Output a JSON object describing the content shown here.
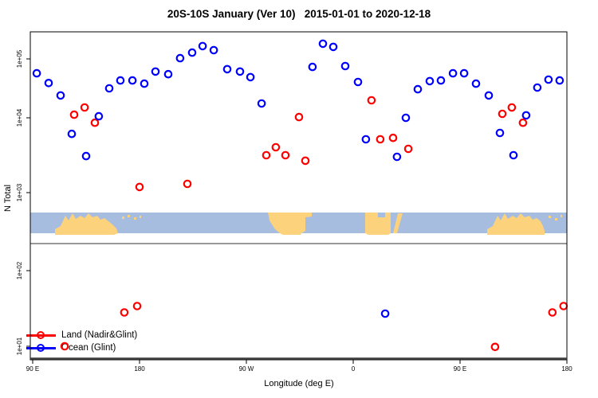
{
  "title": "20S-10S January (Ver 10)   2015-01-01 to 2020-12-18",
  "chart_data": {
    "type": "scatter",
    "title": "20S-10S January (Ver 10)   2015-01-01 to 2020-12-18",
    "xlabel": "Longitude (deg E)",
    "ylabel": "N Total",
    "x_scale": "linear-wrapped-longitude",
    "y_scale": "log10",
    "x_axis": {
      "range_deg": [
        90,
        540
      ],
      "tick_values": [
        90,
        180,
        270,
        360,
        450,
        540
      ],
      "tick_labels": [
        "90 E",
        "180",
        "90 W",
        "0",
        "90 E",
        "180"
      ]
    },
    "y_axis": {
      "tick_values": [
        100000,
        10000,
        1000,
        100,
        10
      ],
      "tick_labels": [
        "1e+05",
        "1e+04",
        "1e+03",
        "1e+02",
        "1e+01"
      ]
    },
    "legend_position": "bottom-left",
    "grid": false,
    "series": [
      {
        "name": "Land (Nadir&Glint)",
        "color": "#ff0000",
        "marker": "open-circle",
        "points": [
          [
            116.9,
            10
          ],
          [
            124.9,
            11300
          ],
          [
            133.7,
            15000
          ],
          [
            142.4,
            8600
          ],
          [
            167.2,
            28
          ],
          [
            178.0,
            34
          ],
          [
            180.0,
            1190
          ],
          [
            220.3,
            1310
          ],
          [
            286.8,
            3160
          ],
          [
            294.8,
            4040
          ],
          [
            302.9,
            3160
          ],
          [
            314.3,
            10300
          ],
          [
            319.7,
            2670
          ],
          [
            375.4,
            19800
          ],
          [
            382.8,
            5160
          ],
          [
            393.6,
            5400
          ],
          [
            406.4,
            3850
          ],
          [
            479.5,
            9.8
          ],
          [
            485.6,
            11700
          ],
          [
            493.6,
            15000
          ],
          [
            503.0,
            8600
          ],
          [
            527.8,
            28
          ],
          [
            537.2,
            34
          ]
        ]
      },
      {
        "name": "Ocean (Glint)",
        "color": "#0000ff",
        "marker": "open-circle",
        "points": [
          [
            93.4,
            57000
          ],
          [
            103.4,
            39000
          ],
          [
            113.5,
            24000
          ],
          [
            122.9,
            6100
          ],
          [
            135.0,
            3080
          ],
          [
            145.7,
            10600
          ],
          [
            154.5,
            31600
          ],
          [
            163.9,
            43000
          ],
          [
            174.0,
            43000
          ],
          [
            184.0,
            38000
          ],
          [
            193.4,
            61000
          ],
          [
            204.2,
            55000
          ],
          [
            214.2,
            103000
          ],
          [
            224.3,
            128000
          ],
          [
            233.1,
            165000
          ],
          [
            242.5,
            141000
          ],
          [
            253.9,
            67000
          ],
          [
            264.6,
            61000
          ],
          [
            273.4,
            49000
          ],
          [
            282.8,
            17500
          ],
          [
            325.7,
            73000
          ],
          [
            334.5,
            181000
          ],
          [
            343.2,
            160000
          ],
          [
            353.3,
            75500
          ],
          [
            364.0,
            40500
          ],
          [
            370.7,
            5160
          ],
          [
            386.9,
            27
          ],
          [
            396.9,
            3010
          ],
          [
            404.3,
            10000
          ],
          [
            414.4,
            30600
          ],
          [
            424.5,
            42000
          ],
          [
            433.9,
            43000
          ],
          [
            444.0,
            57000
          ],
          [
            453.4,
            57000
          ],
          [
            463.4,
            38000
          ],
          [
            474.2,
            24000
          ],
          [
            483.6,
            6280
          ],
          [
            495.0,
            3160
          ],
          [
            505.7,
            11000
          ],
          [
            515.1,
            32600
          ],
          [
            524.5,
            44500
          ],
          [
            533.9,
            43000
          ]
        ]
      }
    ]
  },
  "map_strip": {
    "description": "world land/ocean band 20S-10S",
    "ocean_color": "#a7bddf",
    "land_color": "#fcd27c",
    "land_polygons": [
      [
        [
          69,
          295
        ],
        [
          69,
          288
        ],
        [
          76,
          284
        ],
        [
          82,
          271
        ],
        [
          86,
          277
        ],
        [
          91,
          268
        ],
        [
          95,
          275
        ],
        [
          101,
          271
        ],
        [
          106,
          274
        ],
        [
          111,
          268
        ],
        [
          116,
          273
        ],
        [
          122,
          271
        ],
        [
          126,
          276
        ],
        [
          131,
          274
        ],
        [
          136,
          278
        ],
        [
          141,
          282
        ],
        [
          146,
          287
        ],
        [
          148,
          293
        ],
        [
          143,
          295
        ]
      ],
      [
        [
          336,
          267
        ],
        [
          391,
          267
        ],
        [
          391,
          272
        ],
        [
          383,
          273
        ],
        [
          383,
          290
        ],
        [
          378,
          293
        ],
        [
          377,
          295
        ],
        [
          355,
          295
        ],
        [
          351,
          293
        ],
        [
          345,
          288
        ],
        [
          338,
          277
        ]
      ],
      [
        [
          458,
          267
        ],
        [
          490,
          267
        ],
        [
          490,
          293
        ],
        [
          487,
          295
        ],
        [
          462,
          295
        ],
        [
          458,
          293
        ]
      ],
      [
        [
          499,
          268
        ],
        [
          505,
          268
        ],
        [
          498,
          293
        ],
        [
          493,
          293
        ]
      ],
      [
        [
          611,
          295
        ],
        [
          611,
          288
        ],
        [
          618,
          284
        ],
        [
          624,
          271
        ],
        [
          628,
          277
        ],
        [
          633,
          268
        ],
        [
          637,
          275
        ],
        [
          643,
          271
        ],
        [
          648,
          274
        ],
        [
          653,
          268
        ],
        [
          658,
          273
        ],
        [
          664,
          271
        ],
        [
          668,
          276
        ],
        [
          673,
          274
        ],
        [
          678,
          278
        ],
        [
          681,
          284
        ],
        [
          683,
          290
        ],
        [
          683,
          295
        ]
      ]
    ],
    "land_dots": [
      [
        153,
        272,
        3,
        3
      ],
      [
        160,
        270,
        3,
        3
      ],
      [
        168,
        273,
        3,
        3
      ],
      [
        175,
        271,
        2,
        3
      ],
      [
        688,
        271,
        3,
        3
      ],
      [
        696,
        274,
        3,
        3
      ],
      [
        703,
        270,
        2,
        3
      ]
    ],
    "ocean_notches": [
      [
        474,
        267,
        9,
        6
      ]
    ]
  }
}
